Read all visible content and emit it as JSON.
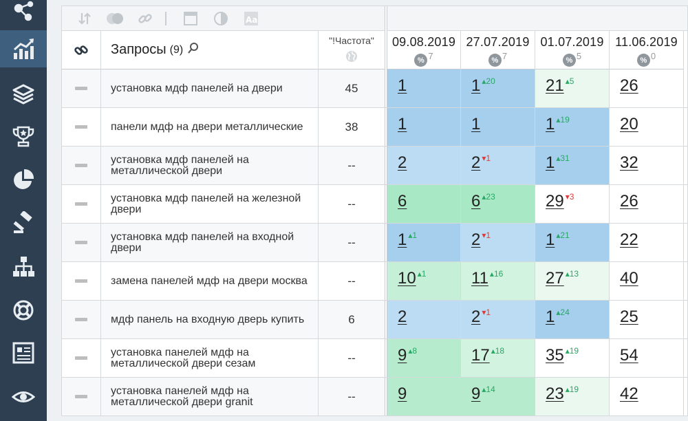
{
  "sidebar": {
    "items": [
      {
        "icon": "network-icon",
        "active": false
      },
      {
        "icon": "chart-icon",
        "active": true
      },
      {
        "icon": "layers-icon",
        "active": false
      },
      {
        "icon": "trophy-icon",
        "active": false
      },
      {
        "icon": "pie-chart-icon",
        "active": false
      },
      {
        "icon": "gavel-icon",
        "active": false
      },
      {
        "icon": "sitemap-icon",
        "active": false
      },
      {
        "icon": "lifebuoy-icon",
        "active": false
      },
      {
        "icon": "report-icon",
        "active": false
      },
      {
        "icon": "eye-icon",
        "active": false
      }
    ]
  },
  "toolbar": {
    "icons": [
      "sort-icon",
      "toggle-icon",
      "link-icon",
      "window-icon",
      "contrast-icon",
      "font-icon"
    ]
  },
  "header": {
    "queries_title": "Запросы",
    "queries_count": "(9)",
    "frequency_label": "\"!Частота\"",
    "dates": [
      {
        "date": "09.08.2019",
        "pct_symbol": "%",
        "pct_value": "7"
      },
      {
        "date": "27.07.2019",
        "pct_symbol": "%",
        "pct_value": "7"
      },
      {
        "date": "01.07.2019",
        "pct_symbol": "%",
        "pct_value": "5"
      },
      {
        "date": "11.06.2019",
        "pct_symbol": "%",
        "pct_value": "0"
      }
    ]
  },
  "colors": {
    "top3": "#a6cfee",
    "top10": "#a8e8c4",
    "top20": "#d2f3df",
    "top30": "#eaf8ef",
    "blue_light": "#bcdcf3",
    "neutral": "#ffffff"
  },
  "rows": [
    {
      "query": "установка мдф панелей на двери",
      "frequency": "45",
      "positions": [
        {
          "v": "1",
          "d": "",
          "dir": "",
          "bg": "#a6cfee"
        },
        {
          "v": "1",
          "d": "20",
          "dir": "up",
          "bg": "#a6cfee"
        },
        {
          "v": "21",
          "d": "5",
          "dir": "up",
          "bg": "#eaf8ef"
        },
        {
          "v": "26",
          "d": "",
          "dir": "",
          "bg": "#ffffff"
        }
      ]
    },
    {
      "query": "панели мдф на двери металлические",
      "frequency": "38",
      "positions": [
        {
          "v": "1",
          "d": "",
          "dir": "",
          "bg": "#a6cfee"
        },
        {
          "v": "1",
          "d": "",
          "dir": "",
          "bg": "#a6cfee"
        },
        {
          "v": "1",
          "d": "19",
          "dir": "up",
          "bg": "#a6cfee"
        },
        {
          "v": "20",
          "d": "",
          "dir": "",
          "bg": "#ffffff"
        }
      ]
    },
    {
      "query": "установка мдф панелей на металлической двери",
      "frequency": "--",
      "positions": [
        {
          "v": "2",
          "d": "",
          "dir": "",
          "bg": "#bcdcf3"
        },
        {
          "v": "2",
          "d": "1",
          "dir": "down",
          "bg": "#bcdcf3"
        },
        {
          "v": "1",
          "d": "31",
          "dir": "up",
          "bg": "#a6cfee"
        },
        {
          "v": "32",
          "d": "",
          "dir": "",
          "bg": "#ffffff"
        }
      ]
    },
    {
      "query": "установка мдф панелей на железной двери",
      "frequency": "--",
      "positions": [
        {
          "v": "6",
          "d": "",
          "dir": "",
          "bg": "#a8e8c4"
        },
        {
          "v": "6",
          "d": "23",
          "dir": "up",
          "bg": "#a8e8c4"
        },
        {
          "v": "29",
          "d": "3",
          "dir": "down",
          "bg": "#ffffff"
        },
        {
          "v": "26",
          "d": "",
          "dir": "",
          "bg": "#ffffff"
        }
      ]
    },
    {
      "query": "установка мдф панелей на входной двери",
      "frequency": "--",
      "positions": [
        {
          "v": "1",
          "d": "1",
          "dir": "up",
          "bg": "#a6cfee"
        },
        {
          "v": "2",
          "d": "1",
          "dir": "down",
          "bg": "#bcdcf3"
        },
        {
          "v": "1",
          "d": "21",
          "dir": "up",
          "bg": "#a6cfee"
        },
        {
          "v": "22",
          "d": "",
          "dir": "",
          "bg": "#ffffff"
        }
      ]
    },
    {
      "query": "замена панелей мдф на двери москва",
      "frequency": "--",
      "positions": [
        {
          "v": "10",
          "d": "1",
          "dir": "up",
          "bg": "#c6efd7"
        },
        {
          "v": "11",
          "d": "16",
          "dir": "up",
          "bg": "#d2f3df"
        },
        {
          "v": "27",
          "d": "13",
          "dir": "up",
          "bg": "#eaf8ef"
        },
        {
          "v": "40",
          "d": "",
          "dir": "",
          "bg": "#ffffff"
        }
      ]
    },
    {
      "query": "мдф панель на входную дверь купить",
      "frequency": "6",
      "positions": [
        {
          "v": "2",
          "d": "",
          "dir": "",
          "bg": "#bcdcf3"
        },
        {
          "v": "2",
          "d": "1",
          "dir": "down",
          "bg": "#bcdcf3"
        },
        {
          "v": "1",
          "d": "24",
          "dir": "up",
          "bg": "#a6cfee"
        },
        {
          "v": "25",
          "d": "",
          "dir": "",
          "bg": "#ffffff"
        }
      ]
    },
    {
      "query": "установка панелей мдф на металлической двери сезам",
      "frequency": "--",
      "positions": [
        {
          "v": "9",
          "d": "8",
          "dir": "up",
          "bg": "#b7ebcd"
        },
        {
          "v": "17",
          "d": "18",
          "dir": "up",
          "bg": "#d2f3df"
        },
        {
          "v": "35",
          "d": "19",
          "dir": "up",
          "bg": "#ffffff"
        },
        {
          "v": "54",
          "d": "",
          "dir": "",
          "bg": "#ffffff"
        }
      ]
    },
    {
      "query": "установка панелей мдф на металлической двери granit",
      "frequency": "--",
      "positions": [
        {
          "v": "9",
          "d": "",
          "dir": "",
          "bg": "#b7ebcd"
        },
        {
          "v": "9",
          "d": "14",
          "dir": "up",
          "bg": "#b7ebcd"
        },
        {
          "v": "23",
          "d": "19",
          "dir": "up",
          "bg": "#eaf8ef"
        },
        {
          "v": "42",
          "d": "",
          "dir": "",
          "bg": "#ffffff"
        }
      ]
    }
  ]
}
